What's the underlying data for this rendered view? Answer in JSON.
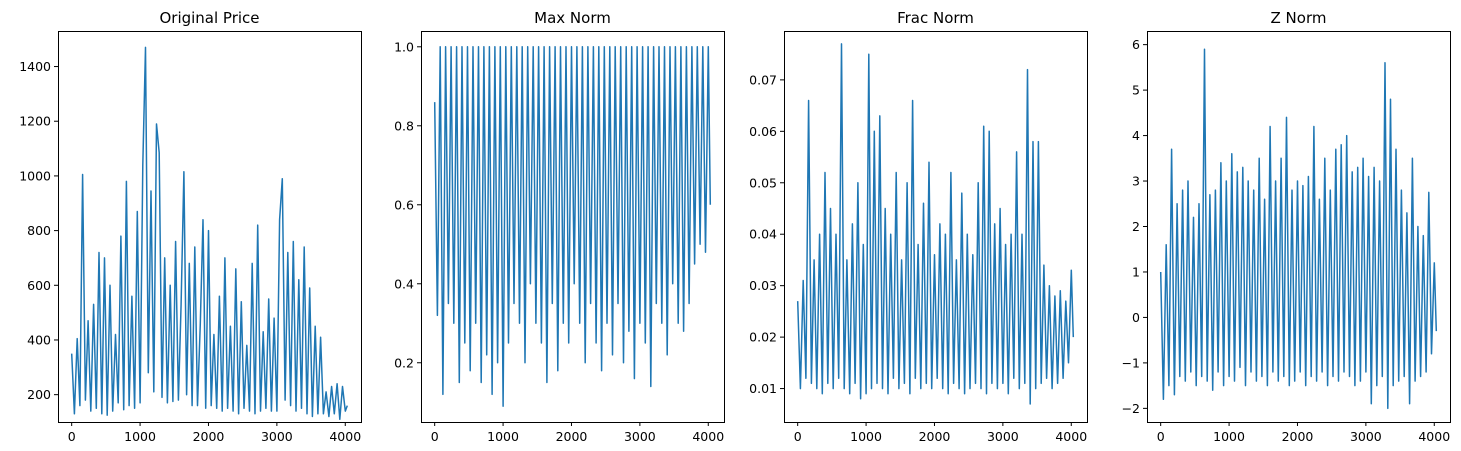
{
  "figure": {
    "series_color": "#1f77b4"
  },
  "chart_data": [
    {
      "type": "line",
      "title": "Original Price",
      "xlim": [
        -200,
        4230
      ],
      "ylim": [
        100,
        1530
      ],
      "xticks": [
        0,
        1000,
        2000,
        3000,
        4000
      ],
      "yticks": [
        200,
        400,
        600,
        800,
        1000,
        1200,
        1400
      ],
      "ytick_labels": [
        "200",
        "400",
        "600",
        "800",
        "1000",
        "1200",
        "1400"
      ],
      "x": [
        0,
        40,
        80,
        120,
        160,
        200,
        240,
        280,
        320,
        360,
        400,
        440,
        480,
        520,
        560,
        600,
        640,
        680,
        720,
        760,
        800,
        840,
        880,
        920,
        960,
        1000,
        1040,
        1080,
        1120,
        1160,
        1200,
        1240,
        1280,
        1320,
        1360,
        1400,
        1440,
        1480,
        1520,
        1560,
        1600,
        1640,
        1680,
        1720,
        1760,
        1800,
        1840,
        1880,
        1920,
        1960,
        2000,
        2040,
        2080,
        2120,
        2160,
        2200,
        2240,
        2280,
        2320,
        2360,
        2400,
        2440,
        2480,
        2520,
        2560,
        2600,
        2640,
        2680,
        2720,
        2760,
        2800,
        2840,
        2880,
        2920,
        2960,
        3000,
        3040,
        3080,
        3120,
        3160,
        3200,
        3240,
        3280,
        3320,
        3360,
        3400,
        3440,
        3480,
        3520,
        3560,
        3600,
        3640,
        3680,
        3720,
        3760,
        3800,
        3840,
        3880,
        3920,
        3960,
        4000,
        4030
      ],
      "values": [
        350,
        130,
        405,
        160,
        1005,
        180,
        470,
        140,
        530,
        150,
        720,
        130,
        700,
        125,
        600,
        140,
        420,
        170,
        780,
        145,
        980,
        160,
        560,
        150,
        870,
        170,
        1040,
        1470,
        280,
        945,
        210,
        1190,
        1085,
        190,
        700,
        170,
        600,
        175,
        760,
        180,
        530,
        1015,
        200,
        680,
        160,
        740,
        160,
        460,
        840,
        150,
        800,
        160,
        420,
        150,
        560,
        140,
        700,
        150,
        450,
        140,
        660,
        130,
        540,
        150,
        380,
        140,
        680,
        130,
        820,
        140,
        430,
        150,
        550,
        140,
        480,
        140,
        840,
        990,
        180,
        720,
        160,
        760,
        140,
        620,
        150,
        740,
        130,
        590,
        120,
        450,
        130,
        410,
        130,
        210,
        120,
        230,
        130,
        240,
        110,
        230,
        140,
        160
      ]
    },
    {
      "type": "line",
      "title": "Max Norm",
      "xlim": [
        -200,
        4230
      ],
      "ylim": [
        0.05,
        1.04
      ],
      "xticks": [
        0,
        1000,
        2000,
        3000,
        4000
      ],
      "yticks": [
        0.2,
        0.4,
        0.6,
        0.8,
        1.0
      ],
      "ytick_labels": [
        "0.2",
        "0.4",
        "0.6",
        "0.8",
        "1.0"
      ],
      "x": [
        0,
        40,
        80,
        120,
        160,
        200,
        240,
        280,
        320,
        360,
        400,
        440,
        480,
        520,
        560,
        600,
        640,
        680,
        720,
        760,
        800,
        840,
        880,
        920,
        960,
        1000,
        1040,
        1080,
        1120,
        1160,
        1200,
        1240,
        1280,
        1320,
        1360,
        1400,
        1440,
        1480,
        1520,
        1560,
        1600,
        1640,
        1680,
        1720,
        1760,
        1800,
        1840,
        1880,
        1920,
        1960,
        2000,
        2040,
        2080,
        2120,
        2160,
        2200,
        2240,
        2280,
        2320,
        2360,
        2400,
        2440,
        2480,
        2520,
        2560,
        2600,
        2640,
        2680,
        2720,
        2760,
        2800,
        2840,
        2880,
        2920,
        2960,
        3000,
        3040,
        3080,
        3120,
        3160,
        3200,
        3240,
        3280,
        3320,
        3360,
        3400,
        3440,
        3480,
        3520,
        3560,
        3600,
        3640,
        3680,
        3720,
        3760,
        3800,
        3840,
        3880,
        3920,
        3960,
        4000,
        4030
      ],
      "values": [
        0.86,
        0.32,
        1.0,
        0.12,
        1.0,
        0.35,
        1.0,
        0.3,
        1.0,
        0.15,
        1.0,
        0.25,
        1.0,
        0.18,
        1.0,
        0.3,
        1.0,
        0.15,
        1.0,
        0.22,
        1.0,
        0.12,
        1.0,
        0.2,
        1.0,
        0.09,
        1.0,
        0.25,
        1.0,
        0.35,
        1.0,
        0.3,
        1.0,
        0.2,
        1.0,
        0.4,
        1.0,
        0.3,
        1.0,
        0.25,
        1.0,
        0.15,
        1.0,
        0.35,
        1.0,
        0.18,
        1.0,
        0.3,
        1.0,
        0.25,
        1.0,
        0.4,
        1.0,
        0.3,
        1.0,
        0.2,
        1.0,
        0.35,
        1.0,
        0.25,
        1.0,
        0.18,
        1.0,
        0.3,
        1.0,
        0.22,
        1.0,
        0.35,
        1.0,
        0.2,
        1.0,
        0.28,
        1.0,
        0.16,
        1.0,
        0.3,
        1.0,
        0.25,
        1.0,
        0.14,
        1.0,
        0.35,
        1.0,
        0.3,
        1.0,
        0.22,
        1.0,
        0.4,
        1.0,
        0.3,
        1.0,
        0.28,
        1.0,
        0.35,
        1.0,
        0.45,
        1.0,
        0.5,
        1.0,
        0.48,
        1.0,
        0.6
      ]
    },
    {
      "type": "line",
      "title": "Frac Norm",
      "xlim": [
        -200,
        4230
      ],
      "ylim": [
        0.0035,
        0.0795
      ],
      "xticks": [
        0,
        1000,
        2000,
        3000,
        4000
      ],
      "yticks": [
        0.01,
        0.02,
        0.03,
        0.04,
        0.05,
        0.06,
        0.07
      ],
      "ytick_labels": [
        "0.01",
        "0.02",
        "0.03",
        "0.04",
        "0.05",
        "0.06",
        "0.07"
      ],
      "x": [
        0,
        40,
        80,
        120,
        160,
        200,
        240,
        280,
        320,
        360,
        400,
        440,
        480,
        520,
        560,
        600,
        640,
        680,
        720,
        760,
        800,
        840,
        880,
        920,
        960,
        1000,
        1040,
        1080,
        1120,
        1160,
        1200,
        1240,
        1280,
        1320,
        1360,
        1400,
        1440,
        1480,
        1520,
        1560,
        1600,
        1640,
        1680,
        1720,
        1760,
        1800,
        1840,
        1880,
        1920,
        1960,
        2000,
        2040,
        2080,
        2120,
        2160,
        2200,
        2240,
        2280,
        2320,
        2360,
        2400,
        2440,
        2480,
        2520,
        2560,
        2600,
        2640,
        2680,
        2720,
        2760,
        2800,
        2840,
        2880,
        2920,
        2960,
        3000,
        3040,
        3080,
        3120,
        3160,
        3200,
        3240,
        3280,
        3320,
        3360,
        3400,
        3440,
        3480,
        3520,
        3560,
        3600,
        3640,
        3680,
        3720,
        3760,
        3800,
        3840,
        3880,
        3920,
        3960,
        4000,
        4030
      ],
      "values": [
        0.027,
        0.01,
        0.031,
        0.012,
        0.066,
        0.011,
        0.035,
        0.01,
        0.04,
        0.009,
        0.052,
        0.011,
        0.045,
        0.01,
        0.04,
        0.012,
        0.077,
        0.01,
        0.035,
        0.009,
        0.042,
        0.011,
        0.05,
        0.008,
        0.038,
        0.009,
        0.075,
        0.01,
        0.06,
        0.011,
        0.063,
        0.01,
        0.045,
        0.009,
        0.04,
        0.012,
        0.052,
        0.01,
        0.035,
        0.011,
        0.05,
        0.009,
        0.066,
        0.012,
        0.038,
        0.01,
        0.046,
        0.011,
        0.054,
        0.01,
        0.036,
        0.012,
        0.042,
        0.01,
        0.04,
        0.009,
        0.052,
        0.011,
        0.035,
        0.01,
        0.048,
        0.009,
        0.04,
        0.01,
        0.036,
        0.011,
        0.05,
        0.01,
        0.061,
        0.009,
        0.06,
        0.011,
        0.042,
        0.01,
        0.045,
        0.011,
        0.038,
        0.009,
        0.04,
        0.012,
        0.056,
        0.01,
        0.04,
        0.011,
        0.072,
        0.007,
        0.058,
        0.01,
        0.058,
        0.011,
        0.034,
        0.012,
        0.03,
        0.01,
        0.028,
        0.011,
        0.029,
        0.012,
        0.027,
        0.015,
        0.033,
        0.02
      ]
    },
    {
      "type": "line",
      "title": "Z Norm",
      "xlim": [
        -200,
        4230
      ],
      "ylim": [
        -2.3,
        6.3
      ],
      "xticks": [
        0,
        1000,
        2000,
        3000,
        4000
      ],
      "yticks": [
        -2,
        -1,
        0,
        1,
        2,
        3,
        4,
        5,
        6
      ],
      "ytick_labels": [
        "−2",
        "−1",
        "0",
        "1",
        "2",
        "3",
        "4",
        "5",
        "6"
      ],
      "x": [
        0,
        40,
        80,
        120,
        160,
        200,
        240,
        280,
        320,
        360,
        400,
        440,
        480,
        520,
        560,
        600,
        640,
        680,
        720,
        760,
        800,
        840,
        880,
        920,
        960,
        1000,
        1040,
        1080,
        1120,
        1160,
        1200,
        1240,
        1280,
        1320,
        1360,
        1400,
        1440,
        1480,
        1520,
        1560,
        1600,
        1640,
        1680,
        1720,
        1760,
        1800,
        1840,
        1880,
        1920,
        1960,
        2000,
        2040,
        2080,
        2120,
        2160,
        2200,
        2240,
        2280,
        2320,
        2360,
        2400,
        2440,
        2480,
        2520,
        2560,
        2600,
        2640,
        2680,
        2720,
        2760,
        2800,
        2840,
        2880,
        2920,
        2960,
        3000,
        3040,
        3080,
        3120,
        3160,
        3200,
        3240,
        3280,
        3320,
        3360,
        3400,
        3440,
        3480,
        3520,
        3560,
        3600,
        3640,
        3680,
        3720,
        3760,
        3800,
        3840,
        3880,
        3920,
        3960,
        4000,
        4030
      ],
      "values": [
        1.0,
        -1.8,
        1.6,
        -1.5,
        3.7,
        -1.7,
        2.5,
        -1.3,
        2.8,
        -1.4,
        3.0,
        -1.2,
        2.2,
        -1.5,
        2.5,
        -1.3,
        5.9,
        -1.4,
        2.7,
        -1.6,
        2.8,
        -1.2,
        3.4,
        -1.5,
        3.0,
        -1.3,
        3.6,
        -1.4,
        3.2,
        -1.1,
        3.3,
        -1.5,
        3.0,
        -1.2,
        2.8,
        -1.4,
        3.5,
        -1.3,
        2.6,
        -1.5,
        4.2,
        -1.2,
        3.0,
        -1.4,
        3.5,
        -1.3,
        4.4,
        -1.5,
        2.8,
        -1.4,
        3.0,
        -1.2,
        2.9,
        -1.5,
        3.1,
        -1.3,
        4.2,
        -1.4,
        2.6,
        -1.2,
        3.5,
        -1.5,
        2.8,
        -1.3,
        3.7,
        -1.4,
        3.8,
        -1.2,
        4.0,
        -1.3,
        3.2,
        -1.5,
        3.3,
        -1.4,
        3.5,
        -1.2,
        3.1,
        -1.9,
        3.3,
        -1.5,
        3.0,
        -1.3,
        5.6,
        -2.0,
        4.8,
        -1.5,
        3.7,
        -1.4,
        2.8,
        -1.3,
        2.3,
        -1.9,
        3.5,
        -1.4,
        2.0,
        -1.3,
        1.8,
        -1.2,
        2.75,
        -0.8,
        1.2,
        -0.3
      ]
    }
  ]
}
